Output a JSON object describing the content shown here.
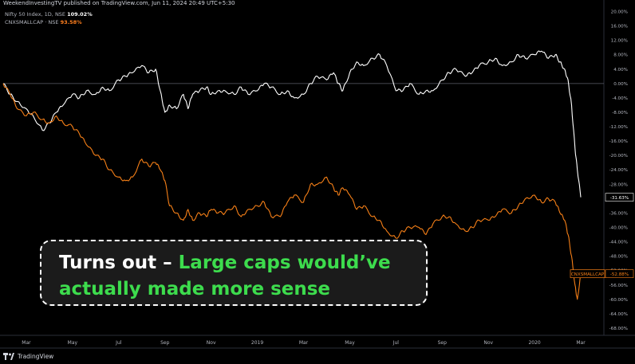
{
  "header": {
    "publisher": "WeekendInvestingTV published on TradingView.com, Jun 11, 2024 20:49 UTC+5:30"
  },
  "legend": [
    {
      "name": "Nifty 50 Index, 1D, NSE",
      "value": "109.02%",
      "color": "#ffffff"
    },
    {
      "name": "CNXSMALLCAP · NSE",
      "value": "93.58%",
      "color": "#ff7f1e"
    }
  ],
  "callout": {
    "lead": "Turns out – ",
    "highlight": "Large caps would’ve actually made more sense"
  },
  "footer": {
    "brand": "TradingView"
  },
  "colors": {
    "background": "#000000",
    "nifty": "#ffffff",
    "smallcap": "#f57f17",
    "callout_text": "#ffffff",
    "callout_highlight": "#3ddc4d"
  },
  "chart_data": {
    "type": "line",
    "y_unit": "%",
    "ylim": [
      -70,
      21
    ],
    "y_ticks": [
      "20.00%",
      "16.00%",
      "12.00%",
      "8.00%",
      "4.00%",
      "0.00%",
      "-4.00%",
      "-8.00%",
      "-12.00%",
      "-16.00%",
      "-20.00%",
      "-24.00%",
      "-28.00%",
      "-32.00%",
      "-36.00%",
      "-40.00%",
      "-44.00%",
      "-48.00%",
      "-52.00%",
      "-56.00%",
      "-60.00%",
      "-64.00%",
      "-68.00%"
    ],
    "x_ticks": [
      "Mar",
      "May",
      "Jul",
      "Sep",
      "Nov",
      "2019",
      "Mar",
      "May",
      "Jul",
      "Sep",
      "Nov",
      "2020",
      "Mar"
    ],
    "x_range": [
      0,
      26
    ],
    "x_tick_positions": [
      1,
      3,
      5,
      7,
      9,
      11,
      13,
      15,
      17,
      19,
      21,
      23,
      25
    ],
    "zero_line": 0,
    "series": [
      {
        "name": "Nifty 50 Index",
        "color": "#ffffff",
        "last_label": "-31.63%",
        "x": [
          0,
          0.3,
          0.6,
          1,
          1.3,
          1.7,
          2,
          2.3,
          2.6,
          3,
          3.3,
          3.6,
          4,
          4.3,
          4.6,
          5,
          5.3,
          5.6,
          6,
          6.3,
          6.6,
          6.8,
          7,
          7.2,
          7.5,
          7.8,
          8,
          8.2,
          8.5,
          8.8,
          9,
          9.3,
          9.6,
          10,
          10.3,
          10.6,
          11,
          11.3,
          11.6,
          12,
          12.3,
          12.6,
          13,
          13.3,
          13.6,
          14,
          14.3,
          14.5,
          14.7,
          15,
          15.3,
          15.6,
          16,
          16.3,
          16.6,
          17,
          17.3,
          17.6,
          18,
          18.3,
          18.6,
          19,
          19.3,
          19.6,
          20,
          20.3,
          20.6,
          21,
          21.3,
          21.6,
          22,
          22.3,
          22.6,
          23,
          23.3,
          23.6,
          23.9,
          24.1,
          24.3,
          24.45,
          24.6,
          24.75,
          24.85,
          25.0
        ],
        "y": [
          0,
          -3,
          -5,
          -7,
          -9,
          -13,
          -11,
          -8,
          -6,
          -3,
          -4,
          -2,
          -3,
          -1,
          -2,
          1,
          2,
          3,
          5,
          3,
          4,
          -2,
          -8,
          -6,
          -7,
          -3,
          -7,
          -3,
          -2,
          -1,
          -3,
          -2,
          -2,
          -3,
          -1,
          -3,
          -2,
          0,
          -1,
          -3,
          -2,
          -4,
          -3,
          0,
          2,
          1,
          3,
          0,
          -2,
          3,
          6,
          5,
          7,
          8,
          5,
          -2,
          -2,
          0,
          -3,
          -2,
          -2,
          1,
          3,
          4,
          2,
          3,
          5,
          6,
          7,
          5,
          6,
          8,
          7,
          8,
          9,
          7,
          8,
          6,
          4,
          1,
          -6,
          -18,
          -24,
          -31.63
        ]
      },
      {
        "name": "CNXSMALLCAP",
        "color": "#f57f17",
        "last_label": "-52.88%",
        "x": [
          0,
          0.3,
          0.6,
          1,
          1.3,
          1.7,
          2,
          2.3,
          2.6,
          3,
          3.3,
          3.6,
          4,
          4.3,
          4.6,
          5,
          5.3,
          5.6,
          6,
          6.3,
          6.6,
          6.8,
          7,
          7.2,
          7.5,
          7.8,
          8,
          8.2,
          8.5,
          8.8,
          9,
          9.3,
          9.6,
          10,
          10.3,
          10.6,
          11,
          11.3,
          11.6,
          12,
          12.3,
          12.6,
          13,
          13.3,
          13.6,
          14,
          14.3,
          14.5,
          14.7,
          15,
          15.3,
          15.6,
          16,
          16.3,
          16.6,
          17,
          17.3,
          17.6,
          18,
          18.3,
          18.6,
          19,
          19.3,
          19.6,
          20,
          20.3,
          20.6,
          21,
          21.3,
          21.6,
          22,
          22.3,
          22.6,
          23,
          23.3,
          23.6,
          23.9,
          24.1,
          24.3,
          24.45,
          24.6,
          24.75,
          24.85,
          25.0
        ],
        "y": [
          0,
          -3,
          -7,
          -9,
          -8,
          -10,
          -11,
          -9,
          -11,
          -12,
          -14,
          -17,
          -20,
          -21,
          -24,
          -26,
          -27,
          -26,
          -21,
          -23,
          -22,
          -24,
          -27,
          -34,
          -36,
          -38,
          -35,
          -38,
          -36,
          -37,
          -35,
          -36,
          -36,
          -34,
          -37,
          -35,
          -34,
          -33,
          -37,
          -37,
          -33,
          -31,
          -33,
          -28,
          -28,
          -26,
          -29,
          -31,
          -29,
          -31,
          -35,
          -34,
          -37,
          -38,
          -41,
          -43,
          -41,
          -40,
          -40,
          -42,
          -39,
          -37,
          -37,
          -39,
          -41,
          -40,
          -38,
          -38,
          -37,
          -35,
          -36,
          -34,
          -32,
          -31,
          -33,
          -32,
          -33,
          -36,
          -38,
          -42,
          -48,
          -56,
          -60,
          -52.88
        ]
      }
    ],
    "last_value_labels": [
      "CNXSMALLCAP",
      "-52.88%"
    ]
  }
}
